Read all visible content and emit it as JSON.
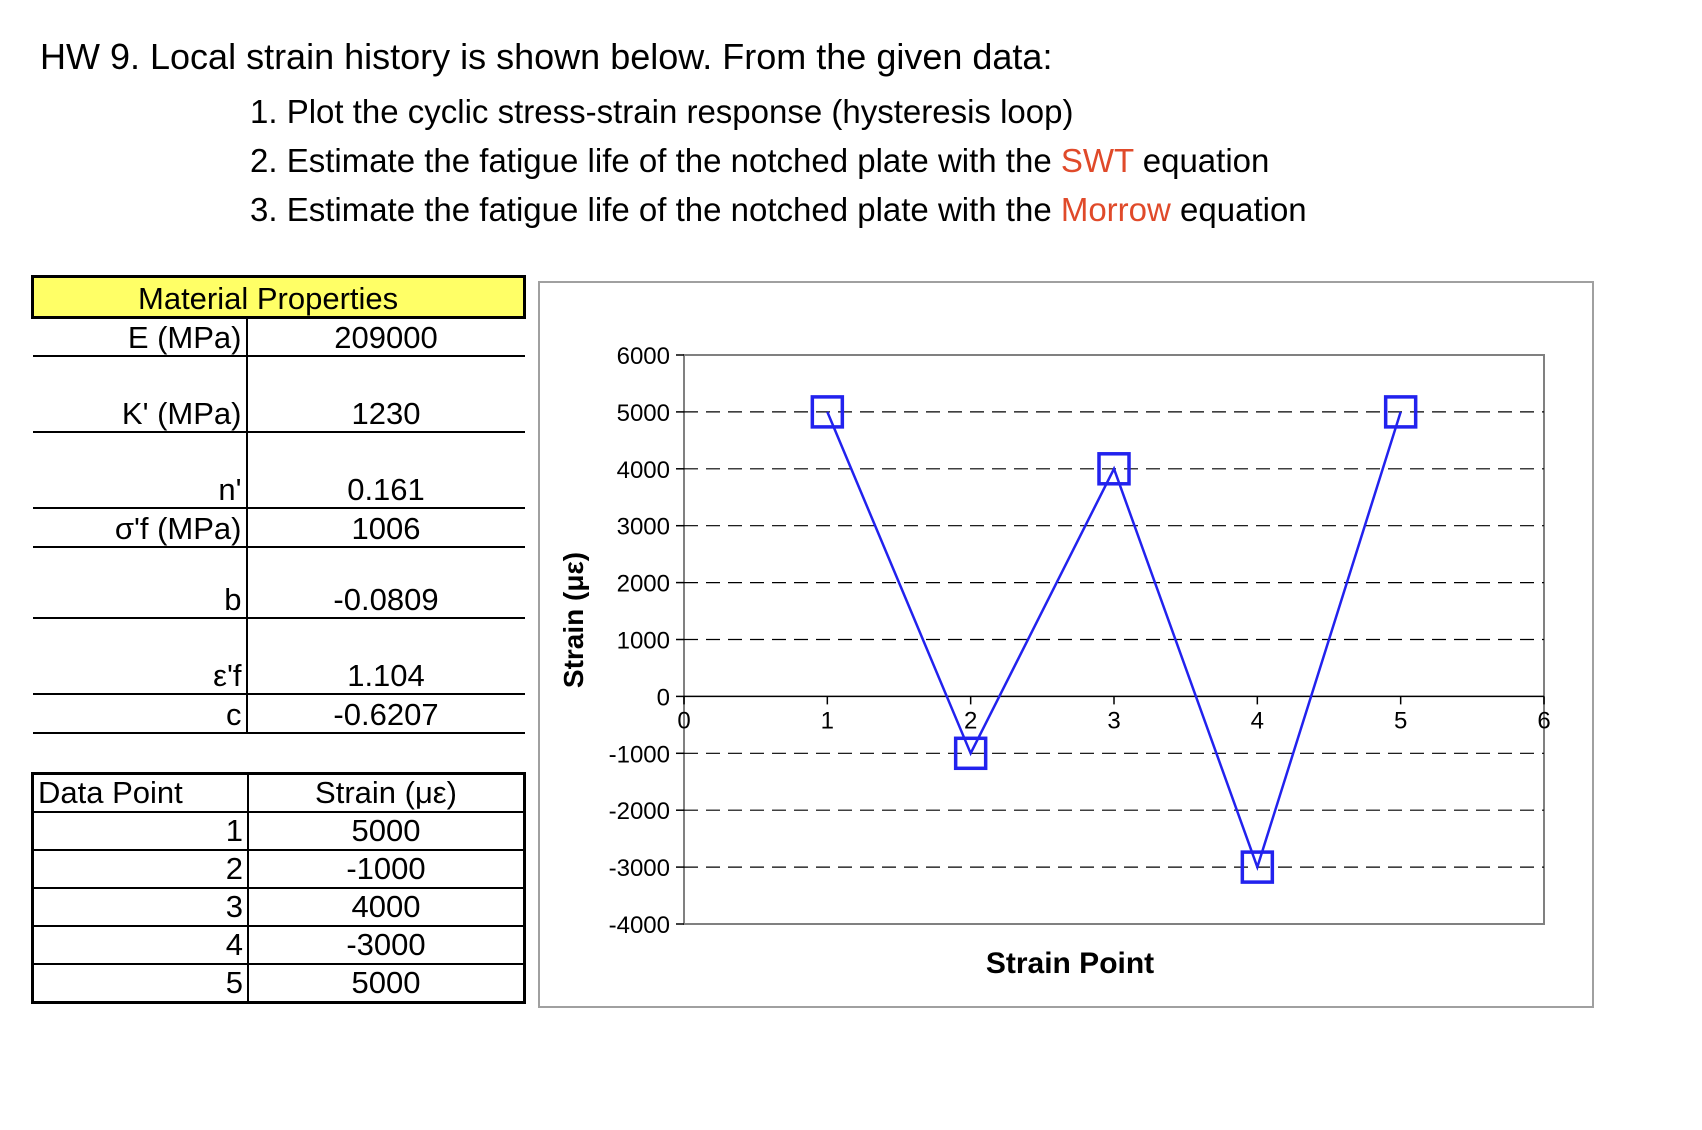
{
  "heading": {
    "title": "HW 9. Local strain history is shown below. From the given data:",
    "task1": "1. Plot the cyclic stress-strain response (hysteresis loop)",
    "task2_pre": "2. Estimate the fatigue life of the notched plate with the ",
    "task2_hl": "SWT",
    "task2_post": " equation",
    "task3_pre": "3. Estimate the fatigue life of the notched plate with the ",
    "task3_hl": "Morrow",
    "task3_post": " equation",
    "highlight_color": "#e04a2a"
  },
  "material_properties": {
    "header": "Material Properties",
    "rows": [
      {
        "label": "E (MPa)",
        "value": "209000"
      },
      {
        "label": "K' (MPa)",
        "value": "1230"
      },
      {
        "label": "n'",
        "value": "0.161"
      },
      {
        "label": "σ'f (MPa)",
        "value": "1006"
      },
      {
        "label": "b",
        "value": "-0.0809"
      },
      {
        "label": "ε'f",
        "value": "1.104"
      },
      {
        "label": "c",
        "value": "-0.6207"
      }
    ],
    "header_color": "#ffff66"
  },
  "data_table": {
    "col1": "Data Point",
    "col2": "Strain (με)",
    "rows": [
      {
        "point": "1",
        "strain": "5000"
      },
      {
        "point": "2",
        "strain": "-1000"
      },
      {
        "point": "3",
        "strain": "4000"
      },
      {
        "point": "4",
        "strain": "-3000"
      },
      {
        "point": "5",
        "strain": "5000"
      }
    ]
  },
  "chart_data": {
    "type": "line",
    "xlabel": "Strain Point",
    "ylabel": "Strain (με)",
    "xlim": [
      0,
      6
    ],
    "ylim": [
      -4000,
      6000
    ],
    "x_ticks": [
      "0",
      "1",
      "2",
      "3",
      "4",
      "5",
      "6"
    ],
    "y_ticks": [
      "6000",
      "5000",
      "4000",
      "3000",
      "2000",
      "1000",
      "0",
      "-1000",
      "-2000",
      "-3000",
      "-4000"
    ],
    "grid": "horizontal dashed",
    "series": [
      {
        "x": [
          1,
          2,
          3,
          4,
          5
        ],
        "y": [
          5000,
          -1000,
          4000,
          -3000,
          5000
        ],
        "color": "#2222ee",
        "marker": "square"
      }
    ]
  }
}
